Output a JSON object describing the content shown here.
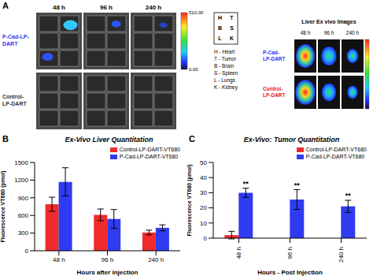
{
  "panel_a": {
    "letter": "A",
    "time_points": [
      "48 h",
      "96 h",
      "240 h"
    ],
    "rows": [
      {
        "label": "P-Cad-LP-DART",
        "color": "#2f3bf0"
      },
      {
        "label": "Control-LP-DART",
        "color": "#333333"
      }
    ],
    "colorbar": {
      "range": [
        0,
        510
      ],
      "ticks": [
        {
          "value": 510,
          "label": "510.00"
        },
        {
          "value": 0,
          "label": "0.00"
        }
      ]
    },
    "organ_grid": [
      [
        "H",
        "T"
      ],
      [
        "B",
        "S"
      ],
      [
        "L",
        "K"
      ]
    ],
    "organ_key": [
      "H - Heart",
      "T - Tumor",
      "B - Brain",
      "S - Spleen",
      "L - Lungs",
      "K - Kidney"
    ],
    "liver": {
      "title": "Liver Ex vivo Images",
      "time_points": [
        "48 h",
        "96 h",
        "240 h"
      ],
      "rows": [
        {
          "label": "P-Cad-LP-DART",
          "color": "#2f3bf0"
        },
        {
          "label": "Control-LP-DART",
          "color": "#e8202a"
        }
      ]
    }
  },
  "chart_data": [
    {
      "panel_label": "B",
      "type": "bar",
      "title": "Ex-Vivo Liver Quantitation",
      "x_label": "Hours after injection",
      "y_label": "Fluorescence VT680 (pmol)",
      "categories": [
        "48 h",
        "96 h",
        "240 h"
      ],
      "series": [
        {
          "name": "Control-LP-DART-VT680",
          "color": "#ef2b2b",
          "values": [
            790,
            610,
            310
          ],
          "errors": [
            120,
            100,
            40
          ]
        },
        {
          "name": "P-Cad-LP-DART-VT680",
          "color": "#2f3bf0",
          "values": [
            1170,
            540,
            390
          ],
          "errors": [
            240,
            160,
            50
          ]
        }
      ],
      "ylim": [
        0,
        1500
      ],
      "yticks": [
        0,
        300,
        600,
        900,
        1200,
        1500
      ],
      "grid": false,
      "legend": "upper right"
    },
    {
      "panel_label": "C",
      "type": "bar",
      "title": "Ex-Vivo: Tumor Quantitation",
      "x_label": "Hours - Post Injection",
      "y_label": "Fluorescence VT680 (pmol)",
      "categories": [
        "48 h",
        "96 h",
        "240 h"
      ],
      "series": [
        {
          "name": "Control-LP-DART-VT680",
          "color": "#ef2b2b",
          "values": [
            2,
            0,
            0
          ],
          "errors": [
            2.5,
            0,
            0
          ]
        },
        {
          "name": "P-Cad-LP-DART-VT680",
          "color": "#2f3bf0",
          "values": [
            30,
            25.5,
            21
          ],
          "errors": [
            3,
            6.5,
            4
          ],
          "annotations": [
            "**",
            "**",
            "**"
          ]
        }
      ],
      "ylim": [
        0,
        50
      ],
      "yticks": [
        0,
        10,
        20,
        30,
        40,
        50
      ],
      "grid": false,
      "legend": "upper right"
    }
  ]
}
